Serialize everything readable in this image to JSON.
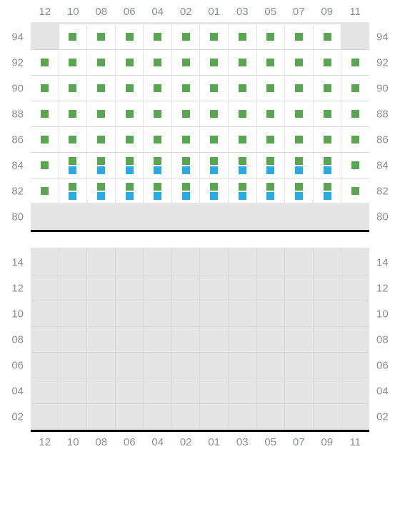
{
  "columns": [
    "12",
    "10",
    "08",
    "06",
    "04",
    "02",
    "01",
    "03",
    "05",
    "07",
    "09",
    "11"
  ],
  "upper": {
    "rowLabels": [
      "94",
      "92",
      "90",
      "88",
      "86",
      "84",
      "82",
      "80"
    ],
    "cells": [
      [
        {
          "a": 0
        },
        {
          "a": 1,
          "m": [
            "g"
          ]
        },
        {
          "a": 1,
          "m": [
            "g"
          ]
        },
        {
          "a": 1,
          "m": [
            "g"
          ]
        },
        {
          "a": 1,
          "m": [
            "g"
          ]
        },
        {
          "a": 1,
          "m": [
            "g"
          ]
        },
        {
          "a": 1,
          "m": [
            "g"
          ]
        },
        {
          "a": 1,
          "m": [
            "g"
          ]
        },
        {
          "a": 1,
          "m": [
            "g"
          ]
        },
        {
          "a": 1,
          "m": [
            "g"
          ]
        },
        {
          "a": 1,
          "m": [
            "g"
          ]
        },
        {
          "a": 0
        }
      ],
      [
        {
          "a": 1,
          "m": [
            "g"
          ]
        },
        {
          "a": 1,
          "m": [
            "g"
          ]
        },
        {
          "a": 1,
          "m": [
            "g"
          ]
        },
        {
          "a": 1,
          "m": [
            "g"
          ]
        },
        {
          "a": 1,
          "m": [
            "g"
          ]
        },
        {
          "a": 1,
          "m": [
            "g"
          ]
        },
        {
          "a": 1,
          "m": [
            "g"
          ]
        },
        {
          "a": 1,
          "m": [
            "g"
          ]
        },
        {
          "a": 1,
          "m": [
            "g"
          ]
        },
        {
          "a": 1,
          "m": [
            "g"
          ]
        },
        {
          "a": 1,
          "m": [
            "g"
          ]
        },
        {
          "a": 1,
          "m": [
            "g"
          ]
        }
      ],
      [
        {
          "a": 1,
          "m": [
            "g"
          ]
        },
        {
          "a": 1,
          "m": [
            "g"
          ]
        },
        {
          "a": 1,
          "m": [
            "g"
          ]
        },
        {
          "a": 1,
          "m": [
            "g"
          ]
        },
        {
          "a": 1,
          "m": [
            "g"
          ]
        },
        {
          "a": 1,
          "m": [
            "g"
          ]
        },
        {
          "a": 1,
          "m": [
            "g"
          ]
        },
        {
          "a": 1,
          "m": [
            "g"
          ]
        },
        {
          "a": 1,
          "m": [
            "g"
          ]
        },
        {
          "a": 1,
          "m": [
            "g"
          ]
        },
        {
          "a": 1,
          "m": [
            "g"
          ]
        },
        {
          "a": 1,
          "m": [
            "g"
          ]
        }
      ],
      [
        {
          "a": 1,
          "m": [
            "g"
          ]
        },
        {
          "a": 1,
          "m": [
            "g"
          ]
        },
        {
          "a": 1,
          "m": [
            "g"
          ]
        },
        {
          "a": 1,
          "m": [
            "g"
          ]
        },
        {
          "a": 1,
          "m": [
            "g"
          ]
        },
        {
          "a": 1,
          "m": [
            "g"
          ]
        },
        {
          "a": 1,
          "m": [
            "g"
          ]
        },
        {
          "a": 1,
          "m": [
            "g"
          ]
        },
        {
          "a": 1,
          "m": [
            "g"
          ]
        },
        {
          "a": 1,
          "m": [
            "g"
          ]
        },
        {
          "a": 1,
          "m": [
            "g"
          ]
        },
        {
          "a": 1,
          "m": [
            "g"
          ]
        }
      ],
      [
        {
          "a": 1,
          "m": [
            "g"
          ]
        },
        {
          "a": 1,
          "m": [
            "g"
          ]
        },
        {
          "a": 1,
          "m": [
            "g"
          ]
        },
        {
          "a": 1,
          "m": [
            "g"
          ]
        },
        {
          "a": 1,
          "m": [
            "g"
          ]
        },
        {
          "a": 1,
          "m": [
            "g"
          ]
        },
        {
          "a": 1,
          "m": [
            "g"
          ]
        },
        {
          "a": 1,
          "m": [
            "g"
          ]
        },
        {
          "a": 1,
          "m": [
            "g"
          ]
        },
        {
          "a": 1,
          "m": [
            "g"
          ]
        },
        {
          "a": 1,
          "m": [
            "g"
          ]
        },
        {
          "a": 1,
          "m": [
            "g"
          ]
        }
      ],
      [
        {
          "a": 1,
          "m": [
            "g"
          ]
        },
        {
          "a": 1,
          "m": [
            "g",
            "b"
          ]
        },
        {
          "a": 1,
          "m": [
            "g",
            "b"
          ]
        },
        {
          "a": 1,
          "m": [
            "g",
            "b"
          ]
        },
        {
          "a": 1,
          "m": [
            "g",
            "b"
          ]
        },
        {
          "a": 1,
          "m": [
            "g",
            "b"
          ]
        },
        {
          "a": 1,
          "m": [
            "g",
            "b"
          ]
        },
        {
          "a": 1,
          "m": [
            "g",
            "b"
          ]
        },
        {
          "a": 1,
          "m": [
            "g",
            "b"
          ]
        },
        {
          "a": 1,
          "m": [
            "g",
            "b"
          ]
        },
        {
          "a": 1,
          "m": [
            "g",
            "b"
          ]
        },
        {
          "a": 1,
          "m": [
            "g"
          ]
        }
      ],
      [
        {
          "a": 1,
          "m": [
            "g"
          ]
        },
        {
          "a": 1,
          "m": [
            "g",
            "b"
          ]
        },
        {
          "a": 1,
          "m": [
            "g",
            "b"
          ]
        },
        {
          "a": 1,
          "m": [
            "g",
            "b"
          ]
        },
        {
          "a": 1,
          "m": [
            "g",
            "b"
          ]
        },
        {
          "a": 1,
          "m": [
            "g",
            "b"
          ]
        },
        {
          "a": 1,
          "m": [
            "g",
            "b"
          ]
        },
        {
          "a": 1,
          "m": [
            "g",
            "b"
          ]
        },
        {
          "a": 1,
          "m": [
            "g",
            "b"
          ]
        },
        {
          "a": 1,
          "m": [
            "g",
            "b"
          ]
        },
        {
          "a": 1,
          "m": [
            "g",
            "b"
          ]
        },
        {
          "a": 1,
          "m": [
            "g"
          ]
        }
      ],
      [
        {
          "a": 0
        },
        {
          "a": 0
        },
        {
          "a": 0
        },
        {
          "a": 0
        },
        {
          "a": 0
        },
        {
          "a": 0
        },
        {
          "a": 0
        },
        {
          "a": 0
        },
        {
          "a": 0
        },
        {
          "a": 0
        },
        {
          "a": 0
        },
        {
          "a": 0
        }
      ]
    ]
  },
  "lower": {
    "rowLabels": [
      "14",
      "12",
      "10",
      "08",
      "06",
      "04",
      "02"
    ],
    "cells": [
      [
        {
          "a": 0
        },
        {
          "a": 0
        },
        {
          "a": 0
        },
        {
          "a": 0
        },
        {
          "a": 0
        },
        {
          "a": 0
        },
        {
          "a": 0
        },
        {
          "a": 0
        },
        {
          "a": 0
        },
        {
          "a": 0
        },
        {
          "a": 0
        },
        {
          "a": 0
        }
      ],
      [
        {
          "a": 0
        },
        {
          "a": 0
        },
        {
          "a": 0
        },
        {
          "a": 0
        },
        {
          "a": 0
        },
        {
          "a": 0
        },
        {
          "a": 0
        },
        {
          "a": 0
        },
        {
          "a": 0
        },
        {
          "a": 0
        },
        {
          "a": 0
        },
        {
          "a": 0
        }
      ],
      [
        {
          "a": 0
        },
        {
          "a": 0
        },
        {
          "a": 0
        },
        {
          "a": 0
        },
        {
          "a": 0
        },
        {
          "a": 0
        },
        {
          "a": 0
        },
        {
          "a": 0
        },
        {
          "a": 0
        },
        {
          "a": 0
        },
        {
          "a": 0
        },
        {
          "a": 0
        }
      ],
      [
        {
          "a": 0
        },
        {
          "a": 0
        },
        {
          "a": 0
        },
        {
          "a": 0
        },
        {
          "a": 0
        },
        {
          "a": 0
        },
        {
          "a": 0
        },
        {
          "a": 0
        },
        {
          "a": 0
        },
        {
          "a": 0
        },
        {
          "a": 0
        },
        {
          "a": 0
        }
      ],
      [
        {
          "a": 0
        },
        {
          "a": 0
        },
        {
          "a": 0
        },
        {
          "a": 0
        },
        {
          "a": 0
        },
        {
          "a": 0
        },
        {
          "a": 0
        },
        {
          "a": 0
        },
        {
          "a": 0
        },
        {
          "a": 0
        },
        {
          "a": 0
        },
        {
          "a": 0
        }
      ],
      [
        {
          "a": 0
        },
        {
          "a": 0
        },
        {
          "a": 0
        },
        {
          "a": 0
        },
        {
          "a": 0
        },
        {
          "a": 0
        },
        {
          "a": 0
        },
        {
          "a": 0
        },
        {
          "a": 0
        },
        {
          "a": 0
        },
        {
          "a": 0
        },
        {
          "a": 0
        }
      ],
      [
        {
          "a": 0
        },
        {
          "a": 0
        },
        {
          "a": 0
        },
        {
          "a": 0
        },
        {
          "a": 0
        },
        {
          "a": 0
        },
        {
          "a": 0
        },
        {
          "a": 0
        },
        {
          "a": 0
        },
        {
          "a": 0
        },
        {
          "a": 0
        },
        {
          "a": 0
        }
      ]
    ]
  },
  "colors": {
    "green": "#58a650",
    "blue": "#29abe2",
    "inactive": "#e4e4e4",
    "active": "#ffffff",
    "label": "#8a8f95",
    "bar": "#000000"
  }
}
